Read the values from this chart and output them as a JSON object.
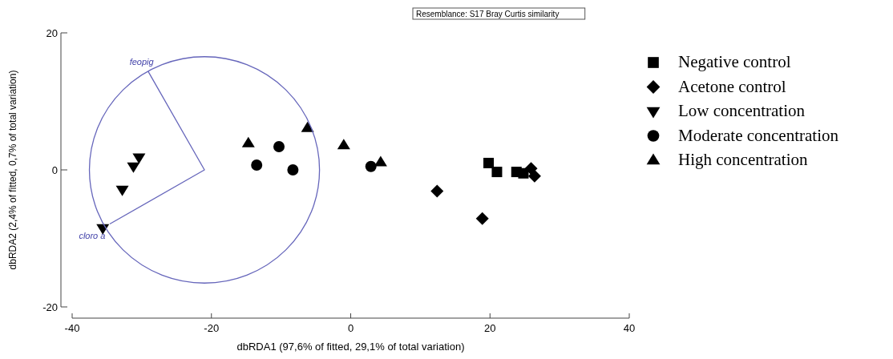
{
  "chart_data": {
    "type": "scatter",
    "xlabel": "dbRDA1 (97,6% of fitted, 29,1% of total variation)",
    "ylabel": "dbRDA2 (2,4% of fitted, 0,7% of total variation)",
    "xlim": [
      -40,
      40
    ],
    "ylim": [
      -20,
      20
    ],
    "xticks": [
      -40,
      -20,
      0,
      20,
      40
    ],
    "yticks": [
      -20,
      0,
      20
    ],
    "grid": false,
    "legend": "right",
    "annotations": [
      "Resemblance: S17 Bray Curtis similarity",
      {
        "text": "feopig",
        "x": -29.1,
        "y": 14.4
      },
      {
        "text": "cloro a",
        "x": -34.6,
        "y": -7.9
      }
    ],
    "series": [
      {
        "name": "Negative control",
        "color": "#000000",
        "marker": "square",
        "x": [
          19.8,
          21.0,
          23.8,
          24.8
        ],
        "values": [
          1.0,
          -0.3,
          -0.3,
          -0.5
        ]
      },
      {
        "name": "Acetone control",
        "color": "#000000",
        "marker": "diamond",
        "x": [
          12.4,
          18.9,
          25.9,
          26.4
        ],
        "values": [
          -3.1,
          -7.1,
          0.2,
          -0.9
        ]
      },
      {
        "name": "Low concentration",
        "color": "#000000",
        "marker": "triangle-down",
        "x": [
          -30.4,
          -31.2,
          -32.8,
          -35.6
        ],
        "values": [
          1.8,
          0.5,
          -2.9,
          -8.5
        ]
      },
      {
        "name": "Moderate concentration",
        "color": "#000000",
        "marker": "circle",
        "x": [
          -10.3,
          -13.5,
          -8.3,
          2.9
        ],
        "values": [
          3.4,
          0.7,
          0.0,
          0.5
        ]
      },
      {
        "name": "High concentration",
        "color": "#000000",
        "marker": "triangle",
        "x": [
          -14.7,
          -6.2,
          -1.0,
          4.3
        ],
        "values": [
          3.9,
          6.1,
          3.6,
          1.1
        ]
      },
      {
        "type": "line",
        "color": "#6666bb",
        "marker": "none",
        "x": [
          -29.1,
          -21,
          -34.6
        ],
        "values": [
          14.4,
          0,
          -7.9
        ]
      }
    ]
  }
}
